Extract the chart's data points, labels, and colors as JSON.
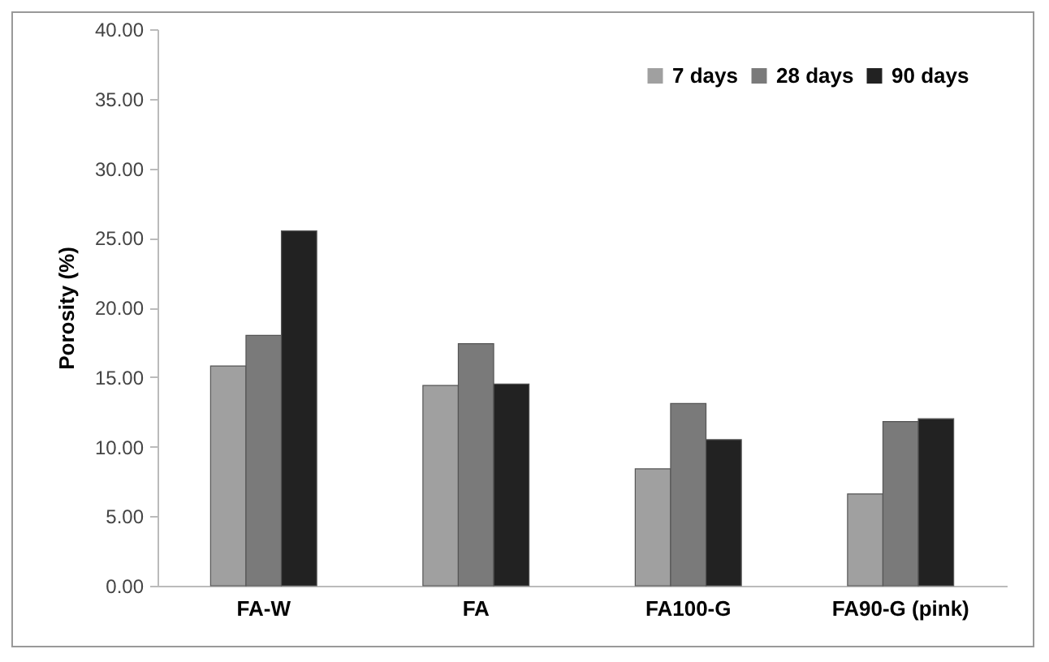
{
  "chart_data": {
    "type": "bar",
    "ylabel": "Porosity (%)",
    "categories": [
      "FA-W",
      "FA",
      "FA100-G",
      "FA90-G (pink)"
    ],
    "series": [
      {
        "name": "7 days",
        "color": "#a0a0a0",
        "values": [
          15.8,
          14.4,
          8.4,
          6.6
        ]
      },
      {
        "name": "28 days",
        "color": "#7a7a7a",
        "values": [
          18.0,
          17.4,
          13.1,
          11.8
        ]
      },
      {
        "name": "90 days",
        "color": "#222222",
        "values": [
          25.5,
          14.5,
          10.5,
          12.0
        ]
      }
    ],
    "ylim": [
      0,
      40
    ],
    "yticks": [
      {
        "value": 0,
        "label": "0.00"
      },
      {
        "value": 5,
        "label": "5.00"
      },
      {
        "value": 10,
        "label": "10.00"
      },
      {
        "value": 15,
        "label": "15.00"
      },
      {
        "value": 20,
        "label": "20.00"
      },
      {
        "value": 25,
        "label": "25.00"
      },
      {
        "value": 30,
        "label": "30.00"
      },
      {
        "value": 35,
        "label": "35.00"
      },
      {
        "value": 40,
        "label": "40.00"
      }
    ],
    "grid": false,
    "legend": "top right"
  }
}
